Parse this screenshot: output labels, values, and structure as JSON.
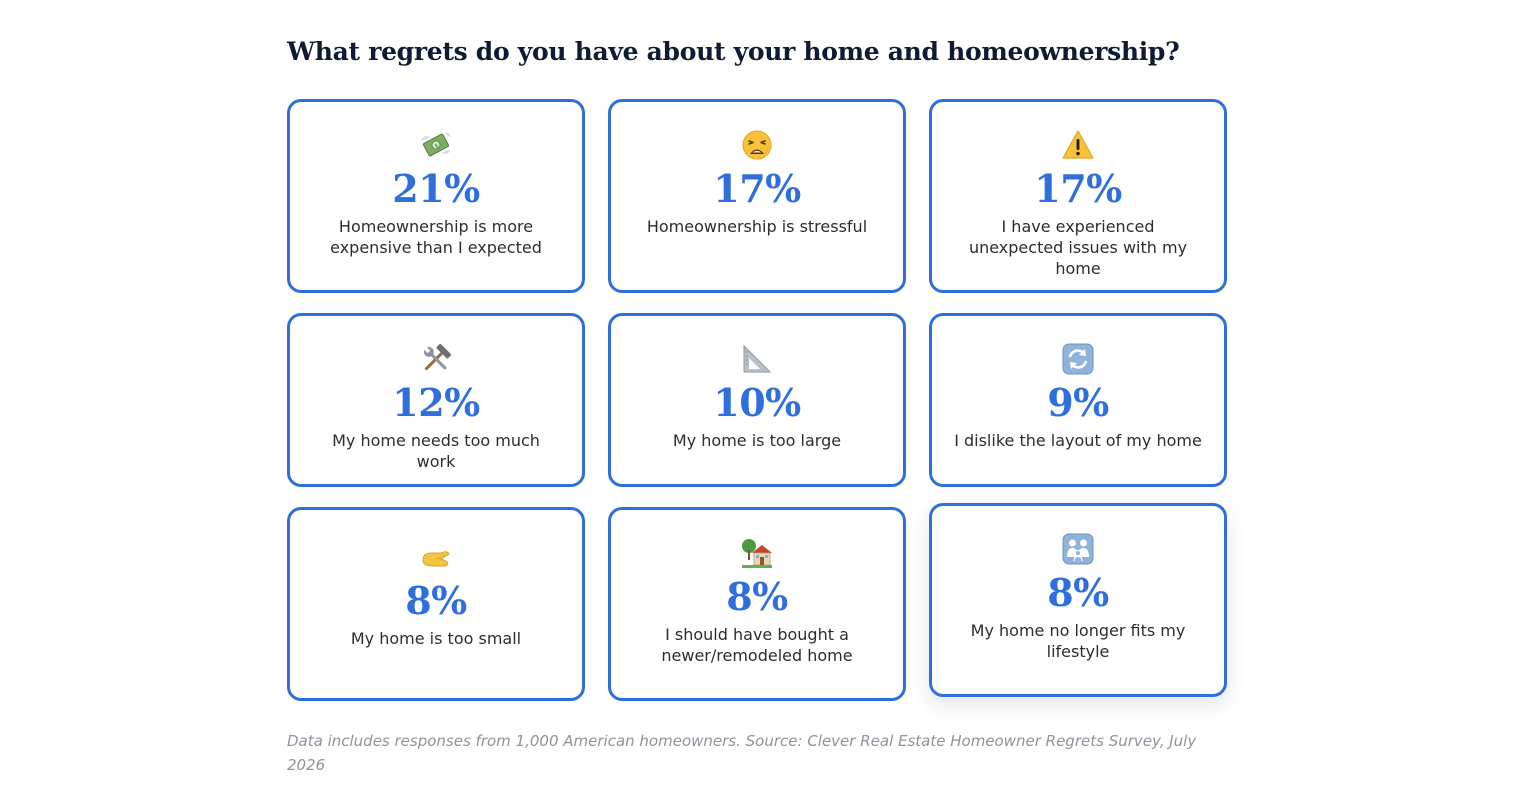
{
  "title": "What regrets do you have about your home and homeownership?",
  "chart_data": {
    "type": "table",
    "title": "What regrets do you have about your home and homeownership?",
    "unit": "%",
    "items": [
      {
        "value": 21,
        "label": "Homeownership is more expensive than I expected",
        "icon": "money-with-wings-icon"
      },
      {
        "value": 17,
        "label": "Homeownership is stressful",
        "icon": "weary-face-icon"
      },
      {
        "value": 17,
        "label": "I have experienced unexpected issues with my home",
        "icon": "warning-icon"
      },
      {
        "value": 12,
        "label": "My home needs too much work",
        "icon": "hammer-and-wrench-icon"
      },
      {
        "value": 10,
        "label": "My home is too large",
        "icon": "triangular-ruler-icon"
      },
      {
        "value": 9,
        "label": "I dislike the layout of my home",
        "icon": "arrows-counterclockwise-icon"
      },
      {
        "value": 8,
        "label": "My home is too small",
        "icon": "pinching-hand-icon"
      },
      {
        "value": 8,
        "label": "I should have bought a newer/remodeled home",
        "icon": "house-with-garden-icon"
      },
      {
        "value": 8,
        "label": "My home no longer fits my lifestyle",
        "icon": "family-icon"
      }
    ]
  },
  "display": [
    {
      "pct": "21%",
      "label": "Homeownership is more expensive than I expected"
    },
    {
      "pct": "17%",
      "label": "Homeownership is stressful"
    },
    {
      "pct": "17%",
      "label": "I have experienced unexpected issues with my home"
    },
    {
      "pct": "12%",
      "label": "My home needs too much work"
    },
    {
      "pct": "10%",
      "label": "My home is too large"
    },
    {
      "pct": "9%",
      "label": "I dislike the layout of my home"
    },
    {
      "pct": "8%",
      "label": "My home is too small"
    },
    {
      "pct": "8%",
      "label": "I should have bought a newer/remodeled home"
    },
    {
      "pct": "8%",
      "label": "My home no longer fits my lifestyle"
    }
  ],
  "footnote": "Data includes responses from 1,000 American homeowners. Source: Clever Real Estate Homeowner Regrets Survey, July 2026",
  "colors": {
    "accent": "#2f6fdd",
    "title": "#0f1b33",
    "label": "#2a2d33",
    "footnote": "#8e939c"
  }
}
